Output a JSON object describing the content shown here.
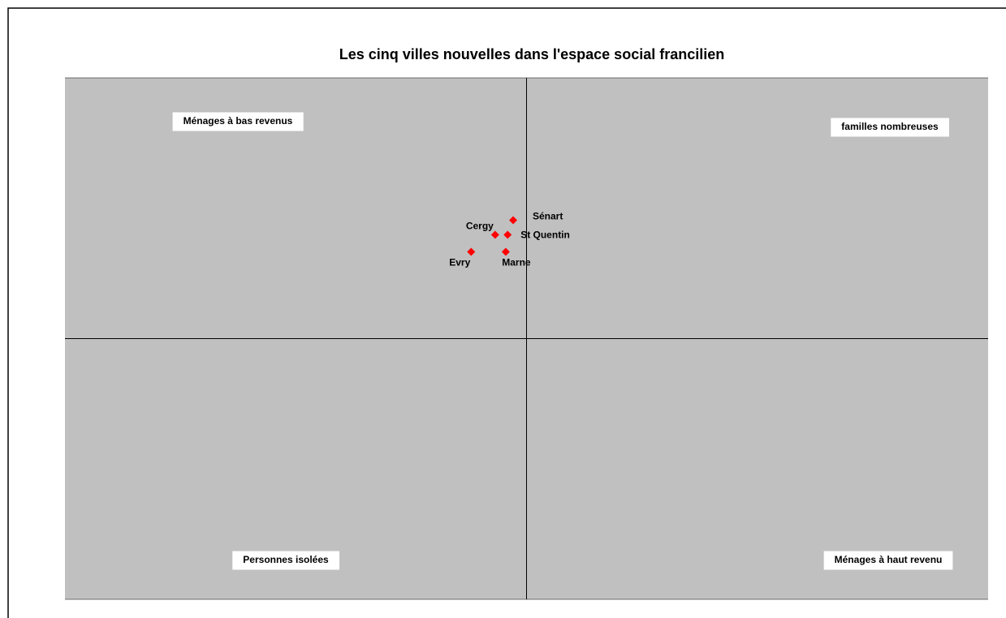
{
  "chart_data": {
    "type": "scatter",
    "title": "Les cinq villes nouvelles dans l'espace social francilien",
    "labels": [
      "Sénart",
      "Cergy",
      "St Quentin",
      "Evry",
      "Marne"
    ],
    "x": [
      -0.029,
      -0.068,
      -0.041,
      -0.12,
      -0.045
    ],
    "values": [
      0.454,
      0.398,
      0.398,
      0.333,
      0.333
    ],
    "color": "#ff0000",
    "background": "#c0c0c0",
    "xlim": [
      -1,
      1
    ],
    "ylim": [
      -1,
      1
    ],
    "annotations": [
      "Ménages à bas revenus",
      "familles nombreuses",
      "Personnes isolées",
      "Ménages à haut revenu"
    ]
  }
}
